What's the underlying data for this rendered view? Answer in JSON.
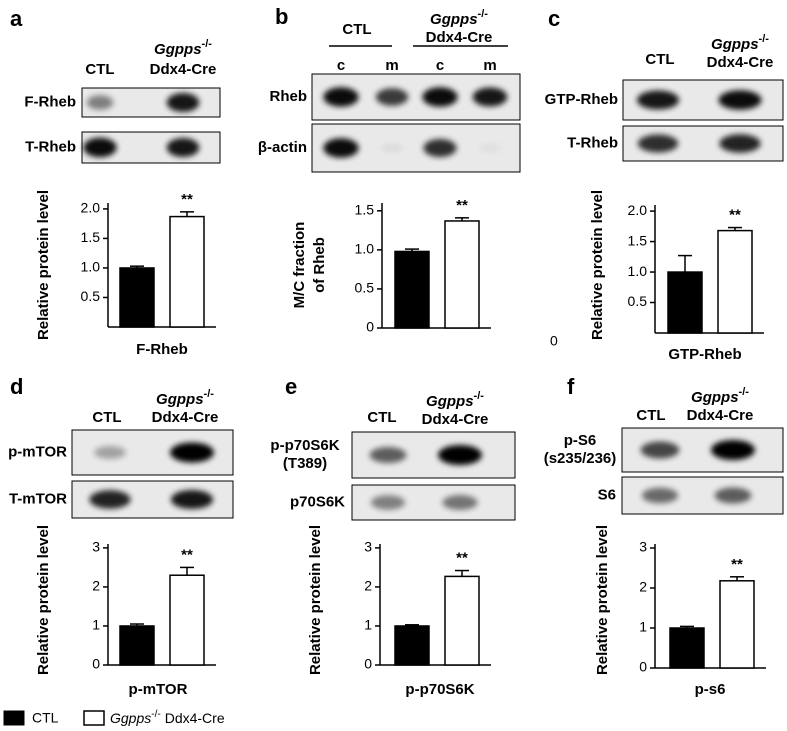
{
  "panels": [
    {
      "letter": "a",
      "ctl": "CTL",
      "ko_gene": "Ggpps",
      "ko_sup": "-/-",
      "ko_line2": "Ddx4-Cre",
      "blot_labels": [
        [
          "F-Rheb"
        ],
        [
          "T-Rheb"
        ]
      ]
    },
    {
      "letter": "b",
      "ctl": "CTL",
      "ko_gene": "Ggpps",
      "ko_sup": "-/-",
      "ko_line2": "Ddx4-Cre",
      "lanes": [
        "c",
        "m",
        "c",
        "m"
      ],
      "blot_labels": [
        [
          "Rheb"
        ],
        [
          "β-actin"
        ]
      ]
    },
    {
      "letter": "c",
      "ctl": "CTL",
      "ko_gene": "Ggpps",
      "ko_sup": "-/-",
      "ko_line2": "Ddx4-Cre",
      "blot_labels": [
        [
          "GTP-Rheb"
        ],
        [
          "T-Rheb"
        ]
      ],
      "stray_label": "0"
    },
    {
      "letter": "d",
      "ctl": "CTL",
      "ko_gene": "Ggpps",
      "ko_sup": "-/-",
      "ko_line2": "Ddx4-Cre",
      "blot_labels": [
        [
          "p-mTOR"
        ],
        [
          "T-mTOR"
        ]
      ]
    },
    {
      "letter": "e",
      "ctl": "CTL",
      "ko_gene": "Ggpps",
      "ko_sup": "-/-",
      "ko_line2": "Ddx4-Cre",
      "blot_labels": [
        [
          "p-p70S6K",
          "(T389)"
        ],
        [
          "p70S6K"
        ]
      ]
    },
    {
      "letter": "f",
      "ctl": "CTL",
      "ko_gene": "Ggpps",
      "ko_sup": "-/-",
      "ko_line2": "Ddx4-Cre",
      "blot_labels": [
        [
          "p-S6",
          "(s235/236)"
        ],
        [
          "S6"
        ]
      ]
    }
  ],
  "chart_data": [
    {
      "type": "bar",
      "y_label": [
        "Relative protein level"
      ],
      "x_label": "F-Rheb",
      "categories": [
        null,
        null
      ],
      "values": [
        1.0,
        1.87
      ],
      "errors": [
        0.03,
        0.08
      ],
      "colors": [
        "#000000",
        "#ffffff"
      ],
      "annotations": [
        null,
        "**"
      ],
      "ylim": [
        0,
        2.1
      ],
      "yticks": [
        0.5,
        {
          "value": 1,
          "label": "1.0"
        },
        1.5,
        {
          "value": 2,
          "label": "2.0"
        }
      ]
    },
    {
      "type": "bar",
      "y_label": [
        "M/C fraction",
        "of Rheb"
      ],
      "categories": [
        null,
        null
      ],
      "values": [
        0.98,
        1.37
      ],
      "errors": [
        0.03,
        0.04
      ],
      "colors": [
        "#000000",
        "#ffffff"
      ],
      "annotations": [
        null,
        "**"
      ],
      "ylim": [
        0,
        1.6
      ],
      "yticks": [
        0,
        0.5,
        {
          "value": 1,
          "label": "1.0"
        },
        1.5
      ]
    },
    {
      "type": "bar",
      "y_label": [
        "Relative protein level"
      ],
      "x_label": "GTP-Rheb",
      "categories": [
        null,
        null
      ],
      "values": [
        1.0,
        1.68
      ],
      "errors": [
        0.27,
        0.05
      ],
      "colors": [
        "#000000",
        "#ffffff"
      ],
      "annotations": [
        null,
        "**"
      ],
      "ylim": [
        0,
        2.1
      ],
      "yticks": [
        0.5,
        {
          "value": 1,
          "label": "1.0"
        },
        1.5,
        {
          "value": 2,
          "label": "2.0"
        }
      ]
    },
    {
      "type": "bar",
      "y_label": [
        "Relative protein level"
      ],
      "x_label": "p-mTOR",
      "categories": [
        null,
        null
      ],
      "values": [
        1.0,
        2.3
      ],
      "errors": [
        0.05,
        0.2
      ],
      "colors": [
        "#000000",
        "#ffffff"
      ],
      "annotations": [
        null,
        "**"
      ],
      "ylim": [
        0,
        3.1
      ],
      "yticks": [
        0,
        1,
        2,
        3
      ]
    },
    {
      "type": "bar",
      "y_label": [
        "Relative protein level"
      ],
      "x_label": "p-p70S6K",
      "categories": [
        null,
        null
      ],
      "values": [
        1.0,
        2.27
      ],
      "errors": [
        0.03,
        0.15
      ],
      "colors": [
        "#000000",
        "#ffffff"
      ],
      "annotations": [
        null,
        "**"
      ],
      "ylim": [
        0,
        3.1
      ],
      "yticks": [
        0,
        1,
        2,
        3
      ]
    },
    {
      "type": "bar",
      "y_label": [
        "Relative protein level"
      ],
      "x_label": "p-s6",
      "categories": [
        null,
        null
      ],
      "values": [
        1.0,
        2.18
      ],
      "errors": [
        0.04,
        0.1
      ],
      "colors": [
        "#000000",
        "#ffffff"
      ],
      "annotations": [
        null,
        "**"
      ],
      "ylim": [
        0,
        3.1
      ],
      "yticks": [
        0,
        1,
        2,
        3
      ]
    }
  ],
  "legend": [
    {
      "name": "CTL",
      "color": "#000000"
    },
    {
      "gene": "Ggpps",
      "sup": "-/-",
      "rest": "Ddx4-Cre",
      "color": "#ffffff"
    }
  ]
}
